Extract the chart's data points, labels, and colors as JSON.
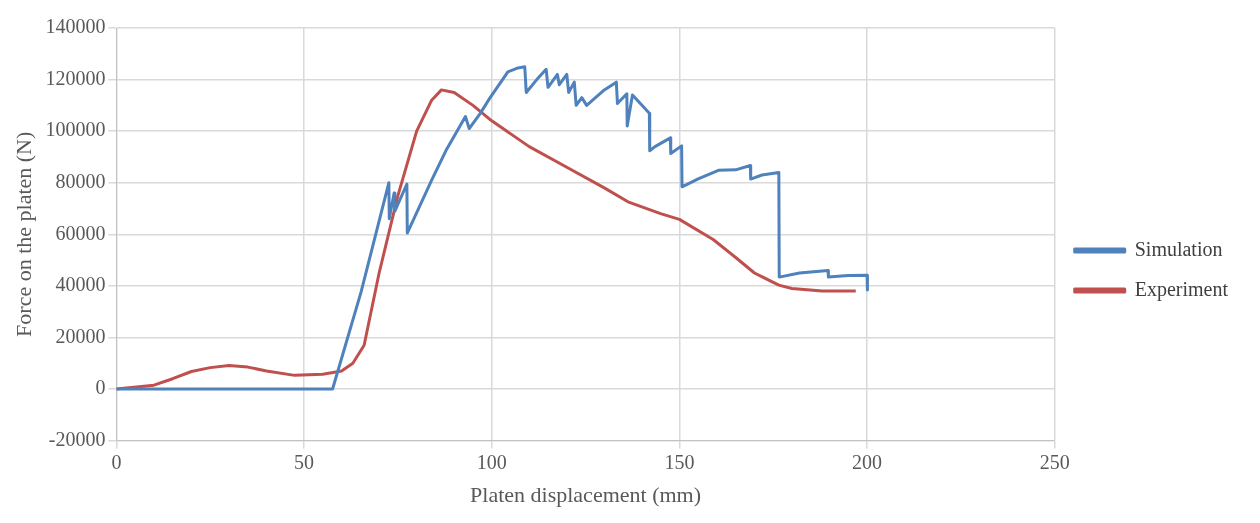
{
  "chart_data": {
    "type": "line",
    "xlabel": "Platen displacement (mm)",
    "ylabel": "Force on the platen (N)",
    "xlim": [
      0,
      250
    ],
    "xticks": [
      0,
      50,
      100,
      150,
      200,
      250
    ],
    "ylim": [
      -20000,
      140000
    ],
    "yticks": [
      -20000,
      0,
      20000,
      40000,
      60000,
      80000,
      100000,
      120000,
      140000
    ],
    "grid": true,
    "legend": "right",
    "marker": "none",
    "line_style": "solid",
    "series": [
      {
        "name": "Simulation",
        "color": "#4f81bd",
        "x": [
          0,
          57.6,
          65.2,
          72.6,
          72.7,
          74,
          74.2,
          77.4,
          77.5,
          84,
          88,
          93,
          94,
          97,
          99.4,
          104.3,
          107,
          108.8,
          109.2,
          112,
          114.5,
          115,
          117.5,
          118,
          120,
          120.5,
          122,
          122.5,
          124,
          125.3,
          130,
          133.2,
          133.5,
          136,
          136.1,
          137.5,
          142,
          142.1,
          143.5,
          147.6,
          147.7,
          150.6,
          150.7,
          155,
          160.4,
          165,
          168.9,
          169,
          172,
          176.5,
          176.6,
          182,
          189.6,
          189.7,
          195,
          200,
          200.1
        ],
        "values": [
          0,
          0,
          37700,
          80000,
          66000,
          76000,
          69000,
          79500,
          60500,
          81000,
          93000,
          105700,
          101000,
          107000,
          112600,
          123000,
          124500,
          125000,
          115000,
          120000,
          124000,
          117000,
          122000,
          118000,
          122000,
          115000,
          119000,
          110000,
          113000,
          110000,
          116000,
          119000,
          110700,
          114500,
          102000,
          114000,
          106900,
          92400,
          94000,
          97400,
          91300,
          94300,
          78400,
          81500,
          84800,
          85000,
          86700,
          81400,
          83000,
          84000,
          43400,
          45000,
          46000,
          43400,
          44000,
          44100,
          38400
        ]
      },
      {
        "name": "Experiment",
        "color": "#c0504d",
        "x": [
          0,
          10,
          15,
          20,
          25,
          30,
          35,
          40,
          47.5,
          55,
          60,
          63,
          66,
          70,
          75,
          80,
          84,
          86.6,
          90,
          95,
          100,
          110,
          120,
          130,
          136.3,
          145,
          150,
          159,
          165,
          170,
          176.5,
          180,
          188,
          197
        ],
        "values": [
          0,
          1500,
          4000,
          6800,
          8300,
          9100,
          8500,
          7000,
          5300,
          5700,
          7000,
          10000,
          17000,
          45000,
          75000,
          100000,
          112000,
          116000,
          115000,
          110000,
          104000,
          94000,
          86000,
          78000,
          72600,
          68000,
          65800,
          58000,
          51000,
          45000,
          40300,
          39000,
          38000,
          38000
        ]
      }
    ]
  }
}
